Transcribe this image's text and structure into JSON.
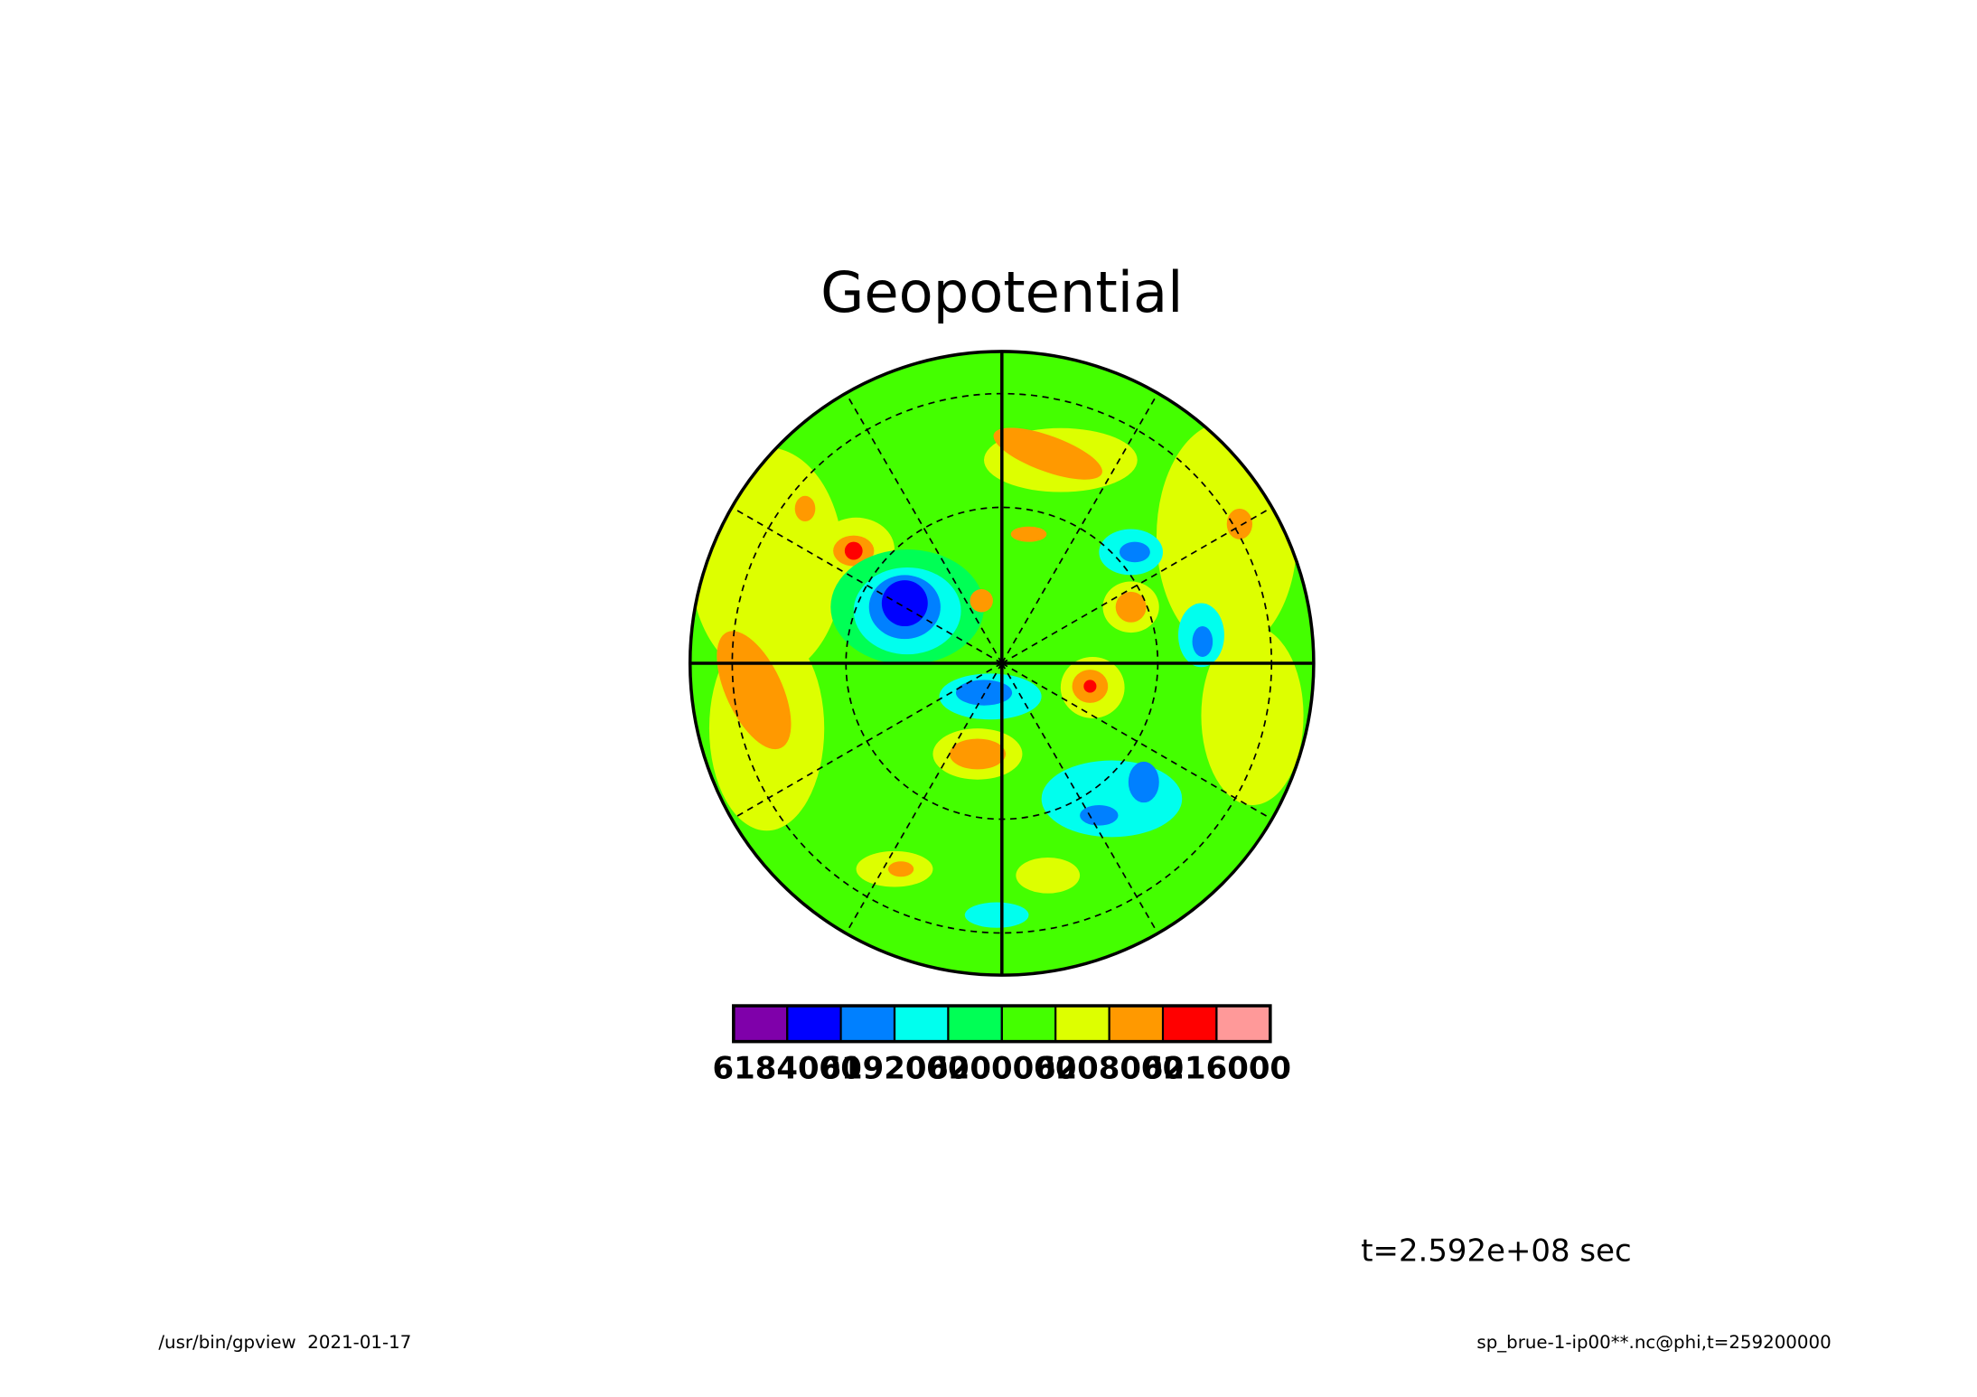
{
  "chart_data": {
    "type": "polar-contour",
    "title": "Geopotential",
    "colors": [
      "#7f00aa",
      "#0000ff",
      "#0080ff",
      "#00ffee",
      "#00ff55",
      "#44ff00",
      "#ddff00",
      "#ff9900",
      "#ff0000",
      "#ff9999"
    ],
    "clim": [
      6180000,
      6220000
    ],
    "cticks": [
      6184000,
      6192000,
      6200000,
      6208000,
      6216000
    ],
    "annotation": "t=2.592e+08 sec",
    "footer_left": "/usr/bin/gpview  2021-01-17",
    "footer_right": "sp_brue-1-ip00**.nc@phi,t=259200000"
  }
}
